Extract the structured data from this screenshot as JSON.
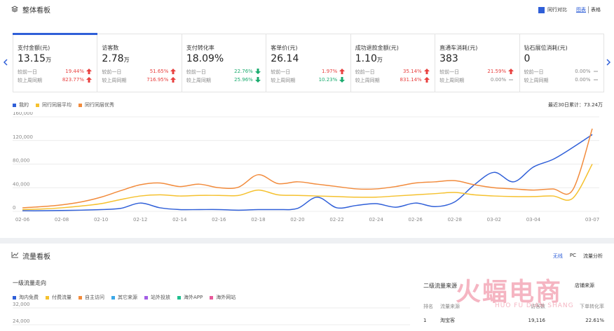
{
  "overview": {
    "title": "整体看板",
    "compare_label": "同行对比",
    "compare_checked": true,
    "view_tabs": [
      "图表",
      "表格"
    ],
    "active_view": 0,
    "metrics": [
      {
        "title": "支付金额(元)",
        "value": "13.15",
        "unit": "万",
        "comparisons": [
          {
            "label": "较前一日",
            "value": "19.44%",
            "trend": "up"
          },
          {
            "label": "较上周同期",
            "value": "823.77%",
            "trend": "up"
          }
        ]
      },
      {
        "title": "访客数",
        "value": "2.78",
        "unit": "万",
        "comparisons": [
          {
            "label": "较前一日",
            "value": "51.65%",
            "trend": "up"
          },
          {
            "label": "较上周同期",
            "value": "716.95%",
            "trend": "up"
          }
        ]
      },
      {
        "title": "支付转化率",
        "value": "18.09%",
        "comparisons": [
          {
            "label": "较前一日",
            "value": "22.76%",
            "trend": "down"
          },
          {
            "label": "较上周同期",
            "value": "25.96%",
            "trend": "down"
          }
        ]
      },
      {
        "title": "客单价(元)",
        "value": "26.14",
        "comparisons": [
          {
            "label": "较前一日",
            "value": "1.97%",
            "trend": "up"
          },
          {
            "label": "较上周同期",
            "value": "10.23%",
            "trend": "down"
          }
        ]
      },
      {
        "title": "成功退款金额(元)",
        "value": "1.10",
        "unit": "万",
        "comparisons": [
          {
            "label": "较前一日",
            "value": "35.14%",
            "trend": "up"
          },
          {
            "label": "较上周同期",
            "value": "831.14%",
            "trend": "up"
          }
        ]
      },
      {
        "title": "直通车消耗(元)",
        "value": "383",
        "comparisons": [
          {
            "label": "较前一日",
            "value": "21.59%",
            "trend": "up"
          },
          {
            "label": "较上周同期",
            "value": "0.00%",
            "trend": "flat"
          }
        ]
      },
      {
        "title": "钻石展位消耗(元)",
        "value": "0",
        "comparisons": [
          {
            "label": "较前一日",
            "value": "0.00%",
            "trend": "flat"
          },
          {
            "label": "较上周同期",
            "value": "0.00%",
            "trend": "flat"
          }
        ]
      }
    ]
  },
  "chart_data": {
    "type": "line",
    "summary": "最近30日累计：73.24万",
    "categories": [
      "02-06",
      null,
      "02-08",
      null,
      "02-10",
      null,
      "02-12",
      null,
      "02-14",
      null,
      "02-16",
      null,
      "02-18",
      null,
      "02-20",
      null,
      "02-22",
      null,
      "02-24",
      null,
      "02-26",
      null,
      "02-28",
      null,
      "03-02",
      null,
      "03-04",
      null,
      null,
      "03-07"
    ],
    "series": [
      {
        "name": "我的",
        "color": "#2f5fd8",
        "values": [
          1000,
          1000,
          1500,
          2000,
          3000,
          5000,
          14000,
          6000,
          3000,
          3000,
          3000,
          2000,
          3000,
          3000,
          5000,
          24000,
          6000,
          10000,
          13000,
          7000,
          14000,
          8000,
          16000,
          45000,
          66000,
          50000,
          75000,
          88000,
          108000,
          130000
        ]
      },
      {
        "name": "同行同层平均",
        "color": "#f5c12e",
        "values": [
          3000,
          4000,
          6000,
          9000,
          13000,
          20000,
          26000,
          28000,
          26000,
          27000,
          27000,
          27000,
          36000,
          28000,
          27000,
          26000,
          25000,
          24000,
          24000,
          26000,
          28000,
          30000,
          32000,
          28000,
          26000,
          25000,
          25000,
          26000,
          22000,
          80000
        ]
      },
      {
        "name": "同行同层优秀",
        "color": "#f28b3c",
        "values": [
          6000,
          8000,
          11000,
          16000,
          24000,
          35000,
          45000,
          48000,
          42000,
          46000,
          40000,
          41000,
          62000,
          47000,
          50000,
          46000,
          42000,
          38000,
          38000,
          42000,
          48000,
          50000,
          52000,
          45000,
          40000,
          38000,
          36000,
          38000,
          36000,
          140000
        ]
      }
    ],
    "ylim": [
      0,
      160000
    ],
    "yticks": [
      0,
      {
        "value": 40000,
        "label": "40,000"
      },
      {
        "value": 80000,
        "label": "80,000"
      },
      {
        "value": 120000,
        "label": "120,000"
      },
      {
        "value": 160000,
        "label": "160,000"
      }
    ],
    "grid": true
  },
  "traffic": {
    "title": "流量看板",
    "tabs": [
      "无线",
      "PC",
      "流量分析"
    ],
    "active_tab": 0,
    "primary": {
      "title": "一级流量走向",
      "legend": [
        {
          "name": "淘内免费",
          "color": "#2f5fd8"
        },
        {
          "name": "付费流量",
          "color": "#f5c12e"
        },
        {
          "name": "自主访问",
          "color": "#f28b3c"
        },
        {
          "name": "其它来源",
          "color": "#3ba8e8"
        },
        {
          "name": "站外投放",
          "color": "#a45ee5"
        },
        {
          "name": "海外APP",
          "color": "#1fbf8f"
        },
        {
          "name": "海外网站",
          "color": "#e85a9b"
        }
      ],
      "yticks": [
        {
          "value": 32000,
          "label": "32,000"
        },
        {
          "value": 24000,
          "label": "24,000"
        }
      ]
    },
    "secondary": {
      "title": "二级流量来源",
      "link": "店铺来源",
      "headers": [
        "排名",
        "流量来源",
        "访客数",
        "下单转化率"
      ],
      "rows": [
        [
          "1",
          "淘宝客",
          "19,116",
          "22.61%"
        ]
      ]
    }
  },
  "watermark": {
    "title": "火蝠电商",
    "subtitle": "HUO FU DIAN SHANG"
  }
}
